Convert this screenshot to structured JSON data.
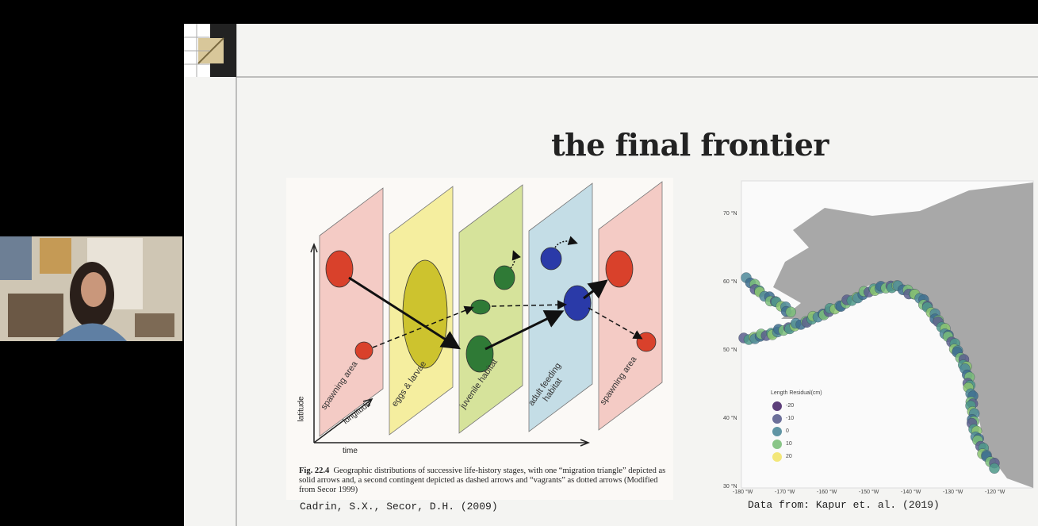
{
  "slide": {
    "title": "the final frontier"
  },
  "left_figure": {
    "panels": [
      "spawning area",
      "eggs & larvae",
      "juvenile habitat",
      "adult feeding habitat",
      "spawning area"
    ],
    "axes": {
      "vertical": "latitude",
      "depth": "longitude",
      "horizontal": "time"
    },
    "caption_label": "Fig. 22.4",
    "caption": "Geographic distributions of successive life-history stages, with one “migration triangle” depicted as solid arrows and, a second contingent depicted as dashed arrows and “vagrants” as dotted arrows (Modified from Secor 1999)",
    "citation": "Cadrin, S.X., Secor, D.H. (2009)"
  },
  "right_figure": {
    "lat_labels": [
      "70 °N",
      "60 °N",
      "50 °N",
      "40 °N",
      "30 °N"
    ],
    "lon_labels": [
      "-180 °W",
      "-170 °W",
      "-160 °W",
      "-150 °W",
      "-140 °W",
      "-130 °W",
      "-120 °W"
    ],
    "legend_title": "Length Residual(cm)",
    "legend_items": [
      "-20",
      "-10",
      "0",
      "10",
      "20"
    ],
    "citation": "Data from: Kapur et. al. (2019)"
  }
}
